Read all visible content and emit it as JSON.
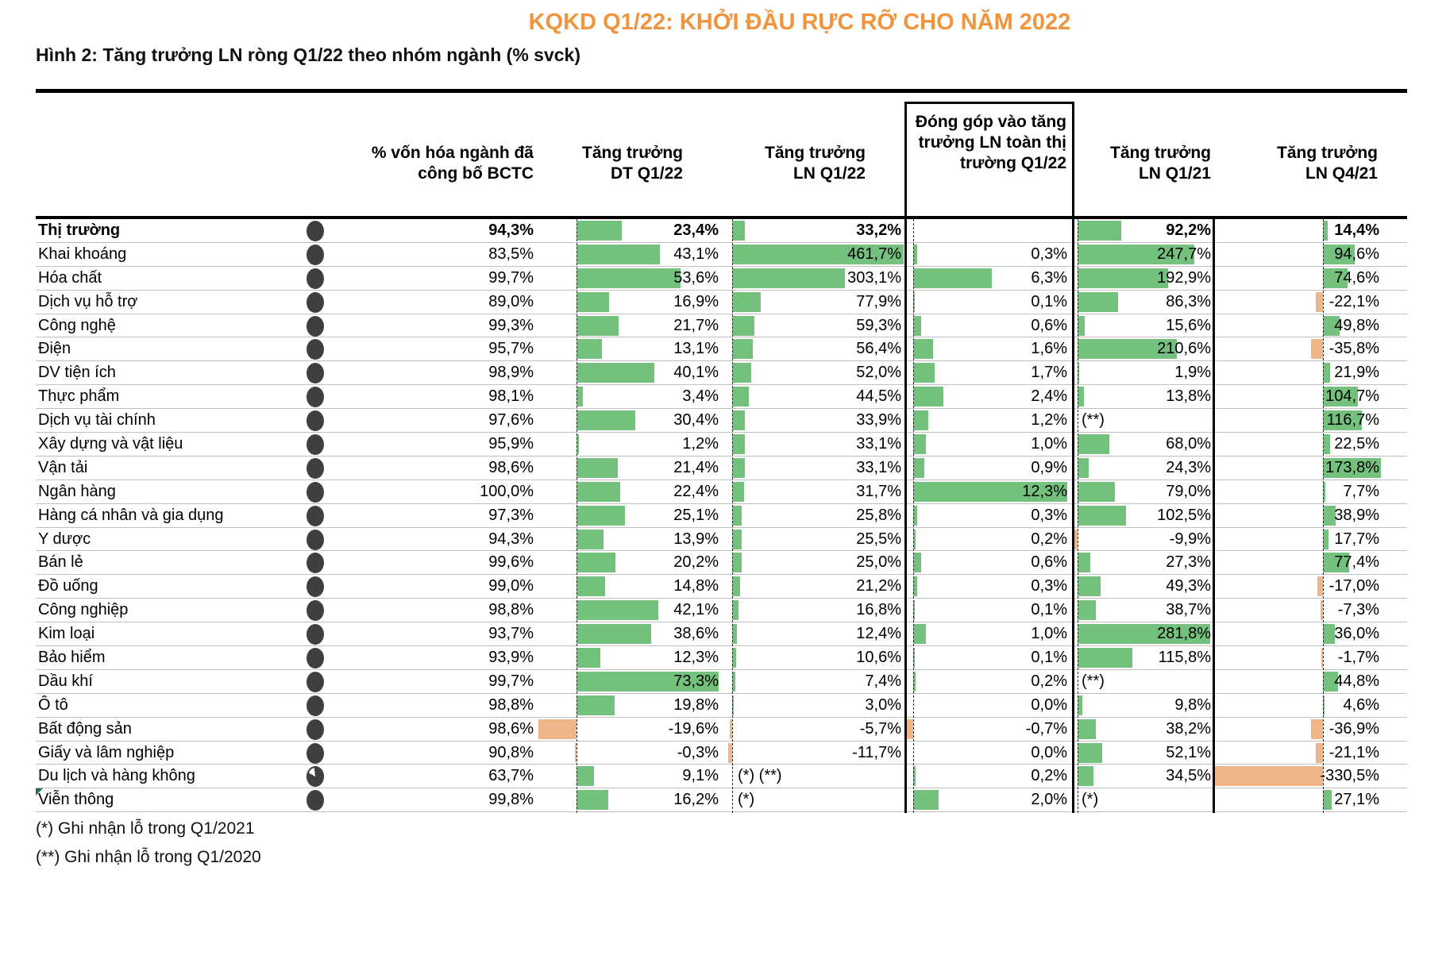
{
  "title": "KQKD Q1/22: KHỞI ĐẦU RỰC RỠ CHO NĂM 2022",
  "figure_title": "Hình 2: Tăng trưởng LN ròng Q1/22 theo nhóm ngành (% svck)",
  "colors": {
    "positive_bar": "#74C17E",
    "negative_bar": "#EFB68A",
    "title_accent": "#F0953E",
    "circle": "#3F3F3F"
  },
  "footnotes": [
    "(*) Ghi nhận lỗ trong Q1/2021",
    "(**) Ghi nhận lỗ trong Q1/2020"
  ],
  "chart_data": {
    "type": "table",
    "title": "Hình 2: Tăng trưởng LN ròng Q1/22 theo nhóm ngành (% svck)",
    "columns": [
      "",
      "% vốn hóa ngành đã công bố BCTC",
      "Tăng trưởng DT Q1/22",
      "Tăng trưởng LN Q1/22",
      "Đóng góp vào tăng trưởng LN toàn thị trường Q1/22",
      "Tăng trưởng LN Q1/21",
      "Tăng trưởng LN Q4/21"
    ],
    "rows": [
      {
        "label": "Thị trường",
        "bold": true,
        "circle": "full",
        "cap": "94,3%",
        "dt": {
          "v": 23.4,
          "t": "23,4%"
        },
        "ln": {
          "v": 33.2,
          "t": "33,2%"
        },
        "ctr": null,
        "q1": {
          "v": 92.2,
          "t": "92,2%"
        },
        "q4": {
          "v": 14.4,
          "t": "14,4%"
        }
      },
      {
        "label": "Khai khoáng",
        "circle": "full",
        "cap": "83,5%",
        "dt": {
          "v": 43.1,
          "t": "43,1%"
        },
        "ln": {
          "v": 461.7,
          "t": "461,7%"
        },
        "ctr": {
          "v": 0.3,
          "t": "0,3%"
        },
        "q1": {
          "v": 247.7,
          "t": "247,7%"
        },
        "q4": {
          "v": 94.6,
          "t": "94,6%"
        }
      },
      {
        "label": "Hóa chất",
        "circle": "full",
        "cap": "99,7%",
        "dt": {
          "v": 53.6,
          "t": "53,6%"
        },
        "ln": {
          "v": 303.1,
          "t": "303,1%"
        },
        "ctr": {
          "v": 6.3,
          "t": "6,3%"
        },
        "q1": {
          "v": 192.9,
          "t": "192,9%"
        },
        "q4": {
          "v": 74.6,
          "t": "74,6%"
        }
      },
      {
        "label": "Dịch vụ hỗ trợ",
        "circle": "full",
        "cap": "89,0%",
        "dt": {
          "v": 16.9,
          "t": "16,9%"
        },
        "ln": {
          "v": 77.9,
          "t": "77,9%"
        },
        "ctr": {
          "v": 0.1,
          "t": "0,1%"
        },
        "q1": {
          "v": 86.3,
          "t": "86,3%"
        },
        "q4": {
          "v": -22.1,
          "t": "-22,1%"
        }
      },
      {
        "label": "Công nghệ",
        "circle": "full",
        "cap": "99,3%",
        "dt": {
          "v": 21.7,
          "t": "21,7%"
        },
        "ln": {
          "v": 59.3,
          "t": "59,3%"
        },
        "ctr": {
          "v": 0.6,
          "t": "0,6%"
        },
        "q1": {
          "v": 15.6,
          "t": "15,6%"
        },
        "q4": {
          "v": 49.8,
          "t": "49,8%"
        }
      },
      {
        "label": "Điện",
        "circle": "full",
        "cap": "95,7%",
        "dt": {
          "v": 13.1,
          "t": "13,1%"
        },
        "ln": {
          "v": 56.4,
          "t": "56,4%"
        },
        "ctr": {
          "v": 1.6,
          "t": "1,6%"
        },
        "q1": {
          "v": 210.6,
          "t": "210,6%"
        },
        "q4": {
          "v": -35.8,
          "t": "-35,8%"
        }
      },
      {
        "label": "DV tiện ích",
        "circle": "full",
        "cap": "98,9%",
        "dt": {
          "v": 40.1,
          "t": "40,1%"
        },
        "ln": {
          "v": 52.0,
          "t": "52,0%"
        },
        "ctr": {
          "v": 1.7,
          "t": "1,7%"
        },
        "q1": {
          "v": 1.9,
          "t": "1,9%"
        },
        "q4": {
          "v": 21.9,
          "t": "21,9%"
        }
      },
      {
        "label": "Thực phẩm",
        "circle": "full",
        "cap": "98,1%",
        "dt": {
          "v": 3.4,
          "t": "3,4%"
        },
        "ln": {
          "v": 44.5,
          "t": "44,5%"
        },
        "ctr": {
          "v": 2.4,
          "t": "2,4%"
        },
        "q1": {
          "v": 13.8,
          "t": "13,8%"
        },
        "q4": {
          "v": 104.7,
          "t": "104,7%"
        }
      },
      {
        "label": "Dịch vụ tài chính",
        "circle": "full",
        "cap": "97,6%",
        "dt": {
          "v": 30.4,
          "t": "30,4%"
        },
        "ln": {
          "v": 33.9,
          "t": "33,9%"
        },
        "ctr": {
          "v": 1.2,
          "t": "1,2%"
        },
        "q1": null,
        "q1_note": "(**)",
        "q4": {
          "v": 116.7,
          "t": "116,7%"
        }
      },
      {
        "label": "Xây dựng và vật liệu",
        "circle": "full",
        "cap": "95,9%",
        "dt": {
          "v": 1.2,
          "t": "1,2%"
        },
        "ln": {
          "v": 33.1,
          "t": "33,1%"
        },
        "ctr": {
          "v": 1.0,
          "t": "1,0%"
        },
        "q1": {
          "v": 68.0,
          "t": "68,0%"
        },
        "q4": {
          "v": 22.5,
          "t": "22,5%"
        }
      },
      {
        "label": "Vận tải",
        "circle": "full",
        "cap": "98,6%",
        "dt": {
          "v": 21.4,
          "t": "21,4%"
        },
        "ln": {
          "v": 33.1,
          "t": "33,1%"
        },
        "ctr": {
          "v": 0.9,
          "t": "0,9%"
        },
        "q1": {
          "v": 24.3,
          "t": "24,3%"
        },
        "q4": {
          "v": 173.8,
          "t": "173,8%"
        }
      },
      {
        "label": "Ngân hàng",
        "circle": "full",
        "cap": "100,0%",
        "dt": {
          "v": 22.4,
          "t": "22,4%"
        },
        "ln": {
          "v": 31.7,
          "t": "31,7%"
        },
        "ctr": {
          "v": 12.3,
          "t": "12,3%"
        },
        "q1": {
          "v": 79.0,
          "t": "79,0%"
        },
        "q4": {
          "v": 7.7,
          "t": "7,7%"
        }
      },
      {
        "label": "Hàng cá nhân và gia dụng",
        "circle": "full",
        "cap": "97,3%",
        "dt": {
          "v": 25.1,
          "t": "25,1%"
        },
        "ln": {
          "v": 25.8,
          "t": "25,8%"
        },
        "ctr": {
          "v": 0.3,
          "t": "0,3%"
        },
        "q1": {
          "v": 102.5,
          "t": "102,5%"
        },
        "q4": {
          "v": 38.9,
          "t": "38,9%"
        }
      },
      {
        "label": "Y dược",
        "circle": "full",
        "cap": "94,3%",
        "dt": {
          "v": 13.9,
          "t": "13,9%"
        },
        "ln": {
          "v": 25.5,
          "t": "25,5%"
        },
        "ctr": {
          "v": 0.2,
          "t": "0,2%"
        },
        "q1": {
          "v": -9.9,
          "t": "-9,9%"
        },
        "q4": {
          "v": 17.7,
          "t": "17,7%"
        }
      },
      {
        "label": "Bán lẻ",
        "circle": "full",
        "cap": "99,6%",
        "dt": {
          "v": 20.2,
          "t": "20,2%"
        },
        "ln": {
          "v": 25.0,
          "t": "25,0%"
        },
        "ctr": {
          "v": 0.6,
          "t": "0,6%"
        },
        "q1": {
          "v": 27.3,
          "t": "27,3%"
        },
        "q4": {
          "v": 77.4,
          "t": "77,4%"
        }
      },
      {
        "label": "Đồ uống",
        "circle": "full",
        "cap": "99,0%",
        "dt": {
          "v": 14.8,
          "t": "14,8%"
        },
        "ln": {
          "v": 21.2,
          "t": "21,2%"
        },
        "ctr": {
          "v": 0.3,
          "t": "0,3%"
        },
        "q1": {
          "v": 49.3,
          "t": "49,3%"
        },
        "q4": {
          "v": -17.0,
          "t": "-17,0%"
        }
      },
      {
        "label": "Công nghiệp",
        "circle": "full",
        "cap": "98,8%",
        "dt": {
          "v": 42.1,
          "t": "42,1%"
        },
        "ln": {
          "v": 16.8,
          "t": "16,8%"
        },
        "ctr": {
          "v": 0.1,
          "t": "0,1%"
        },
        "q1": {
          "v": 38.7,
          "t": "38,7%"
        },
        "q4": {
          "v": -7.3,
          "t": "-7,3%"
        }
      },
      {
        "label": "Kim loại",
        "circle": "full",
        "cap": "93,7%",
        "dt": {
          "v": 38.6,
          "t": "38,6%"
        },
        "ln": {
          "v": 12.4,
          "t": "12,4%"
        },
        "ctr": {
          "v": 1.0,
          "t": "1,0%"
        },
        "q1": {
          "v": 281.8,
          "t": "281,8%"
        },
        "q4": {
          "v": 36.0,
          "t": "36,0%"
        }
      },
      {
        "label": "Bảo hiểm",
        "circle": "full",
        "cap": "93,9%",
        "dt": {
          "v": 12.3,
          "t": "12,3%"
        },
        "ln": {
          "v": 10.6,
          "t": "10,6%"
        },
        "ctr": {
          "v": 0.1,
          "t": "0,1%"
        },
        "q1": {
          "v": 115.8,
          "t": "115,8%"
        },
        "q4": {
          "v": -1.7,
          "t": "-1,7%"
        }
      },
      {
        "label": "Dầu khí",
        "circle": "full",
        "cap": "99,7%",
        "dt": {
          "v": 73.3,
          "t": "73,3%"
        },
        "ln": {
          "v": 7.4,
          "t": "7,4%"
        },
        "ctr": {
          "v": 0.2,
          "t": "0,2%"
        },
        "q1": null,
        "q1_note": "(**)",
        "q4": {
          "v": 44.8,
          "t": "44,8%"
        }
      },
      {
        "label": "Ô tô",
        "circle": "full",
        "cap": "98,8%",
        "dt": {
          "v": 19.8,
          "t": "19,8%"
        },
        "ln": {
          "v": 3.0,
          "t": "3,0%"
        },
        "ctr": {
          "v": 0.0,
          "t": "0,0%"
        },
        "q1": {
          "v": 9.8,
          "t": "9,8%"
        },
        "q4": {
          "v": 4.6,
          "t": "4,6%"
        }
      },
      {
        "label": "Bất động sản",
        "circle": "full",
        "cap": "98,6%",
        "dt": {
          "v": -19.6,
          "t": "-19,6%"
        },
        "ln": {
          "v": -5.7,
          "t": "-5,7%"
        },
        "ctr": {
          "v": -0.7,
          "t": "-0,7%"
        },
        "q1": {
          "v": 38.2,
          "t": "38,2%"
        },
        "q4": {
          "v": -36.9,
          "t": "-36,9%"
        }
      },
      {
        "label": "Giấy và lâm nghiệp",
        "circle": "full",
        "cap": "90,8%",
        "dt": {
          "v": -0.3,
          "t": "-0,3%"
        },
        "ln": {
          "v": -11.7,
          "t": "-11,7%"
        },
        "ctr": {
          "v": 0.0,
          "t": "0,0%"
        },
        "q1": {
          "v": 52.1,
          "t": "52,1%"
        },
        "q4": {
          "v": -21.1,
          "t": "-21,1%"
        }
      },
      {
        "label": "Du lịch và hàng không",
        "circle": "partial",
        "cap": "63,7%",
        "dt": {
          "v": 9.1,
          "t": "9,1%"
        },
        "ln": null,
        "ln_note": "(*) (**)",
        "ctr": {
          "v": 0.2,
          "t": "0,2%"
        },
        "q1": {
          "v": 34.5,
          "t": "34,5%"
        },
        "q4": {
          "v": -330.5,
          "t": "-330,5%"
        }
      },
      {
        "label": "Viễn thông",
        "circle": "full",
        "corner": true,
        "cap": "99,8%",
        "dt": {
          "v": 16.2,
          "t": "16,2%"
        },
        "ln": null,
        "ln_note": "(*)",
        "ctr": {
          "v": 2.0,
          "t": "2,0%"
        },
        "q1": null,
        "q1_note": "(*)",
        "q4": {
          "v": 27.1,
          "t": "27,1%"
        }
      }
    ]
  }
}
